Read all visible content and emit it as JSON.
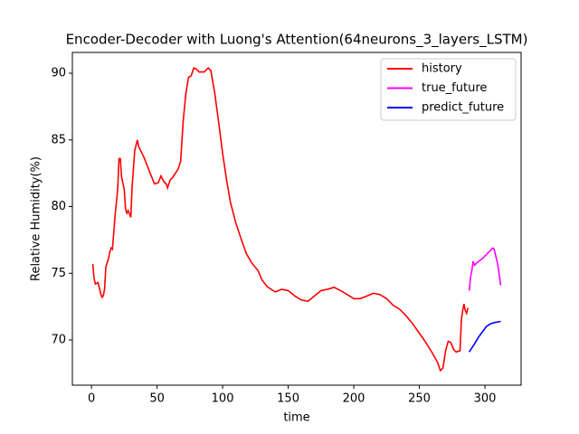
{
  "chart_data": {
    "type": "line",
    "title": "Encoder-Decoder with Luong's Attention(64neurons_3_layers_LSTM)",
    "x_label": "time",
    "y_label": "Relative Humidity(%)",
    "xlim": [
      -14.55,
      327.55
    ],
    "ylim": [
      66.61,
      91.56
    ],
    "xticks": [
      0,
      50,
      100,
      150,
      200,
      250,
      300
    ],
    "yticks": [
      70,
      75,
      80,
      85,
      90
    ],
    "legend": "upper right",
    "series": [
      {
        "name": "history",
        "color": "#ff0000",
        "x": [
          1,
          2,
          3,
          5,
          6,
          7,
          8,
          9,
          10,
          11,
          13,
          14,
          15,
          16,
          18,
          20,
          21,
          22,
          23,
          25,
          26,
          27,
          28,
          30,
          31,
          33,
          35,
          36,
          40,
          44,
          48,
          51,
          53,
          55,
          57,
          58,
          60,
          62,
          64,
          66,
          68,
          70,
          72,
          74,
          76,
          78,
          80,
          82,
          86,
          89,
          91,
          94,
          97,
          100,
          103,
          106,
          110,
          114,
          118,
          122,
          127,
          130,
          134,
          140,
          145,
          150,
          155,
          160,
          165,
          170,
          175,
          180,
          185,
          190,
          195,
          200,
          205,
          210,
          215,
          220,
          225,
          230,
          235,
          240,
          245,
          250,
          255,
          260,
          264,
          266,
          268,
          270,
          272,
          274,
          276,
          278,
          281,
          282,
          283,
          284,
          285,
          286,
          287
        ],
        "values": [
          75.7,
          74.6,
          74.2,
          74.3,
          73.9,
          73.5,
          73.2,
          73.3,
          73.8,
          75.5,
          76.1,
          76.6,
          76.9,
          76.8,
          79.3,
          81.3,
          83.6,
          83.6,
          82.2,
          81.3,
          79.8,
          79.5,
          79.7,
          79.2,
          81.5,
          84.2,
          85.0,
          84.5,
          83.7,
          82.7,
          81.7,
          81.8,
          82.3,
          81.9,
          81.7,
          81.4,
          82.0,
          82.2,
          82.5,
          82.8,
          83.4,
          86.5,
          88.5,
          89.7,
          89.8,
          90.4,
          90.3,
          90.1,
          90.1,
          90.4,
          90.2,
          88.5,
          86.3,
          84.0,
          82.0,
          80.3,
          78.8,
          77.6,
          76.5,
          75.8,
          75.2,
          74.5,
          74.0,
          73.6,
          73.8,
          73.7,
          73.3,
          73.0,
          72.9,
          73.3,
          73.7,
          73.8,
          73.95,
          73.7,
          73.4,
          73.1,
          73.1,
          73.3,
          73.5,
          73.4,
          73.1,
          72.6,
          72.3,
          71.8,
          71.2,
          70.5,
          69.8,
          69.0,
          68.3,
          67.7,
          67.9,
          69.2,
          69.9,
          69.8,
          69.3,
          69.1,
          69.2,
          71.5,
          72.2,
          72.7,
          72.2,
          72.0,
          72.4
        ]
      },
      {
        "name": "true_future",
        "color": "#ff00ff",
        "x": [
          288,
          289,
          290,
          291,
          292,
          294,
          298,
          302,
          306,
          307,
          309,
          310,
          311,
          312
        ],
        "values": [
          73.7,
          74.7,
          75.2,
          75.9,
          75.6,
          75.8,
          76.1,
          76.5,
          76.9,
          76.8,
          76.0,
          75.5,
          74.8,
          74.1
        ]
      },
      {
        "name": "predict_future",
        "color": "#0000ff",
        "x": [
          288,
          290,
          292,
          295,
          298,
          301,
          304,
          307,
          310,
          312
        ],
        "values": [
          69.1,
          69.4,
          69.7,
          70.2,
          70.6,
          71.0,
          71.2,
          71.3,
          71.35,
          71.4
        ]
      }
    ]
  }
}
